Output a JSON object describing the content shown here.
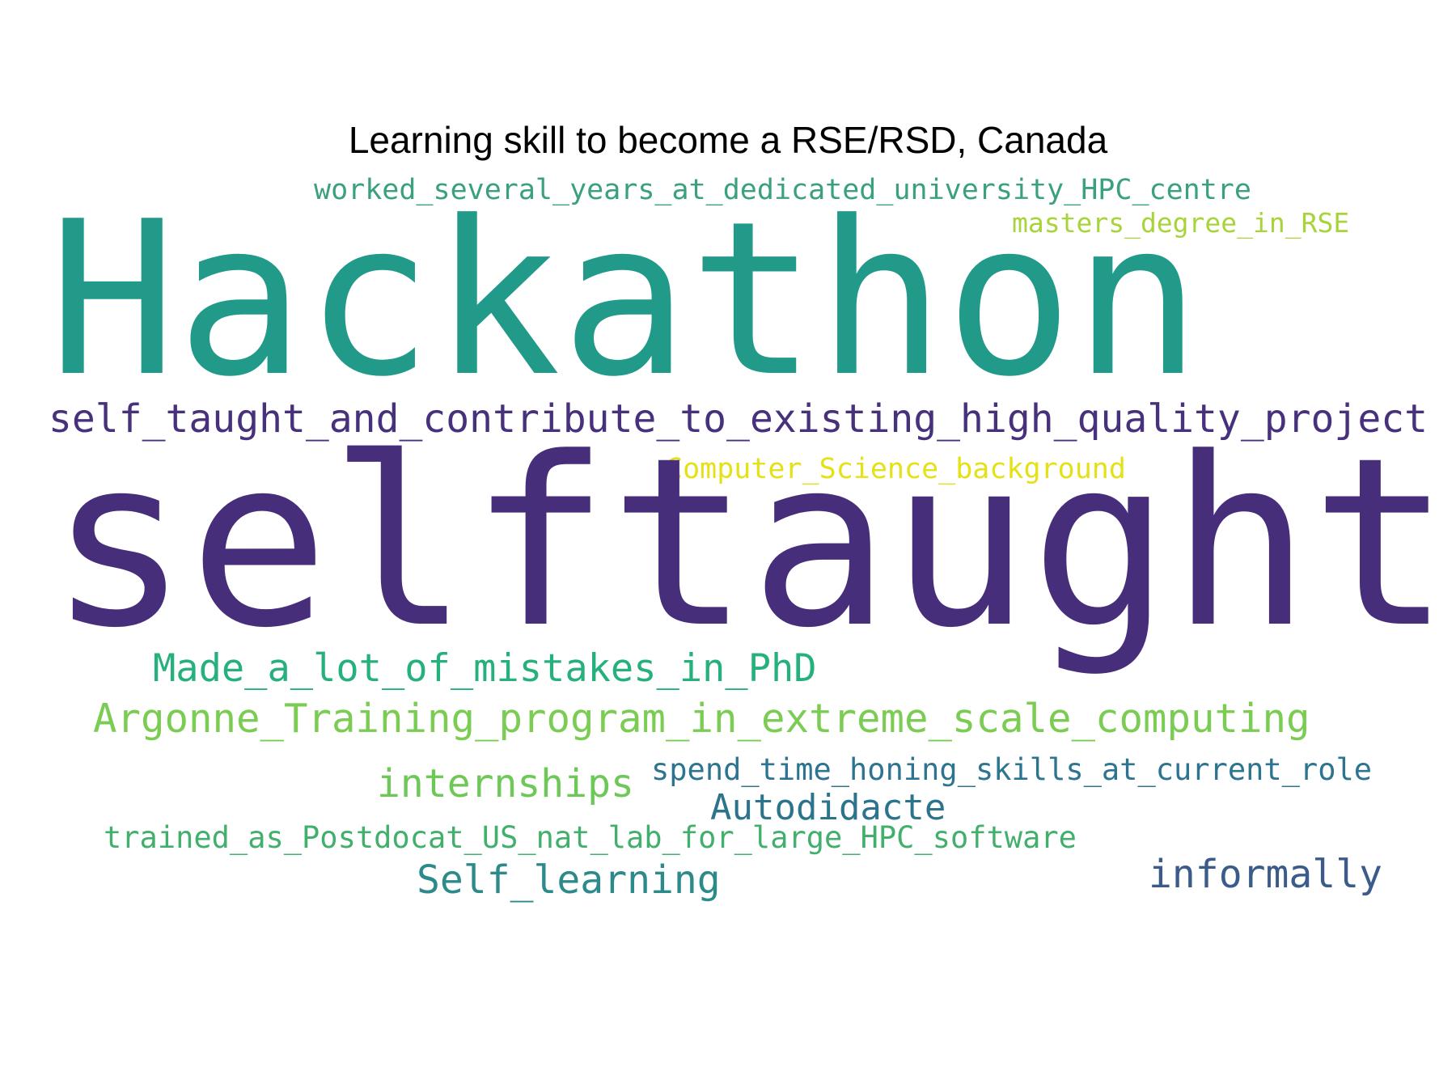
{
  "title": "Learning skill to become a RSE/RSD, Canada",
  "words": [
    {
      "text": "worked_several_years_at_dedicated_university_HPC_centre",
      "color": "#3aa07f"
    },
    {
      "text": "masters_degree_in_RSE",
      "color": "#a8d43a"
    },
    {
      "text": "Hackathon",
      "color": "#219a8a"
    },
    {
      "text": "self_taught_and_contribute_to_existing_high_quality_project",
      "color": "#47307c"
    },
    {
      "text": "Computer_Science_background",
      "color": "#e4e117"
    },
    {
      "text": "selftaught",
      "color": "#472e7b"
    },
    {
      "text": "Made_a_lot_of_mistakes_in_PhD",
      "color": "#26b07b"
    },
    {
      "text": "Argonne_Training_program_in_extreme_scale_computing",
      "color": "#7bcc53"
    },
    {
      "text": "internships",
      "color": "#6ec858"
    },
    {
      "text": "spend_time_honing_skills_at_current_role",
      "color": "#2d7490"
    },
    {
      "text": "Autodidacte",
      "color": "#2c748c"
    },
    {
      "text": "trained_as_Postdocat_US_nat_lab_for_large_HPC_software",
      "color": "#42b06c"
    },
    {
      "text": "Self_learning",
      "color": "#2c8a8b"
    },
    {
      "text": "informally",
      "color": "#3b5c8b"
    }
  ]
}
